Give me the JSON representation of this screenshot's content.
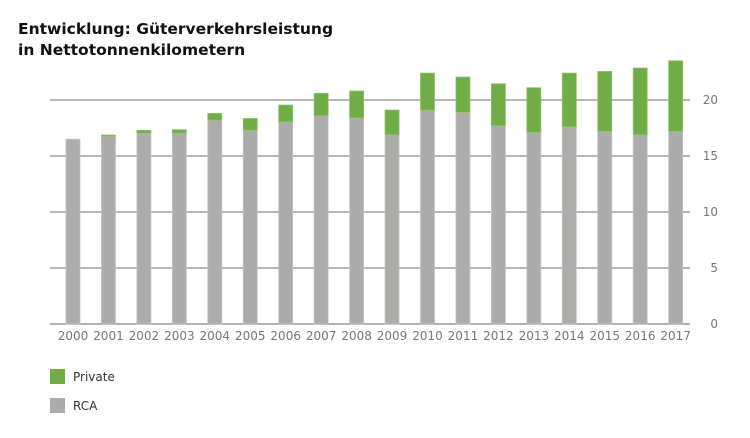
{
  "chart_data": {
    "type": "bar",
    "stacked": true,
    "title": [
      "Entwicklung: Güterverkehrsleistung",
      "in Nettotonnenkilometern"
    ],
    "xlabel": "",
    "ylabel": "",
    "ylim": [
      0,
      25
    ],
    "yticks": [
      0,
      5,
      10,
      15,
      20
    ],
    "y_axis_position": "right",
    "grid": true,
    "legend_position": "bottom-left",
    "categories": [
      "2000",
      "2001",
      "2002",
      "2003",
      "2004",
      "2005",
      "2006",
      "2007",
      "2008",
      "2009",
      "2010",
      "2011",
      "2012",
      "2013",
      "2014",
      "2015",
      "2016",
      "2017"
    ],
    "series": [
      {
        "name": "RCA",
        "color": "#adacaa",
        "values": [
          16.5,
          16.75,
          17.05,
          17.05,
          18.2,
          17.3,
          18.05,
          18.6,
          18.4,
          16.9,
          19.1,
          18.9,
          17.7,
          17.1,
          17.6,
          17.2,
          16.9,
          17.2
        ]
      },
      {
        "name": "Private",
        "color": "#70ad47",
        "values": [
          0,
          0.12,
          0.24,
          0.3,
          0.6,
          1.05,
          1.5,
          2.0,
          2.4,
          2.2,
          3.3,
          3.15,
          3.75,
          4.0,
          4.8,
          5.35,
          5.95,
          6.3
        ]
      }
    ],
    "legend": [
      "Private",
      "RCA"
    ]
  }
}
